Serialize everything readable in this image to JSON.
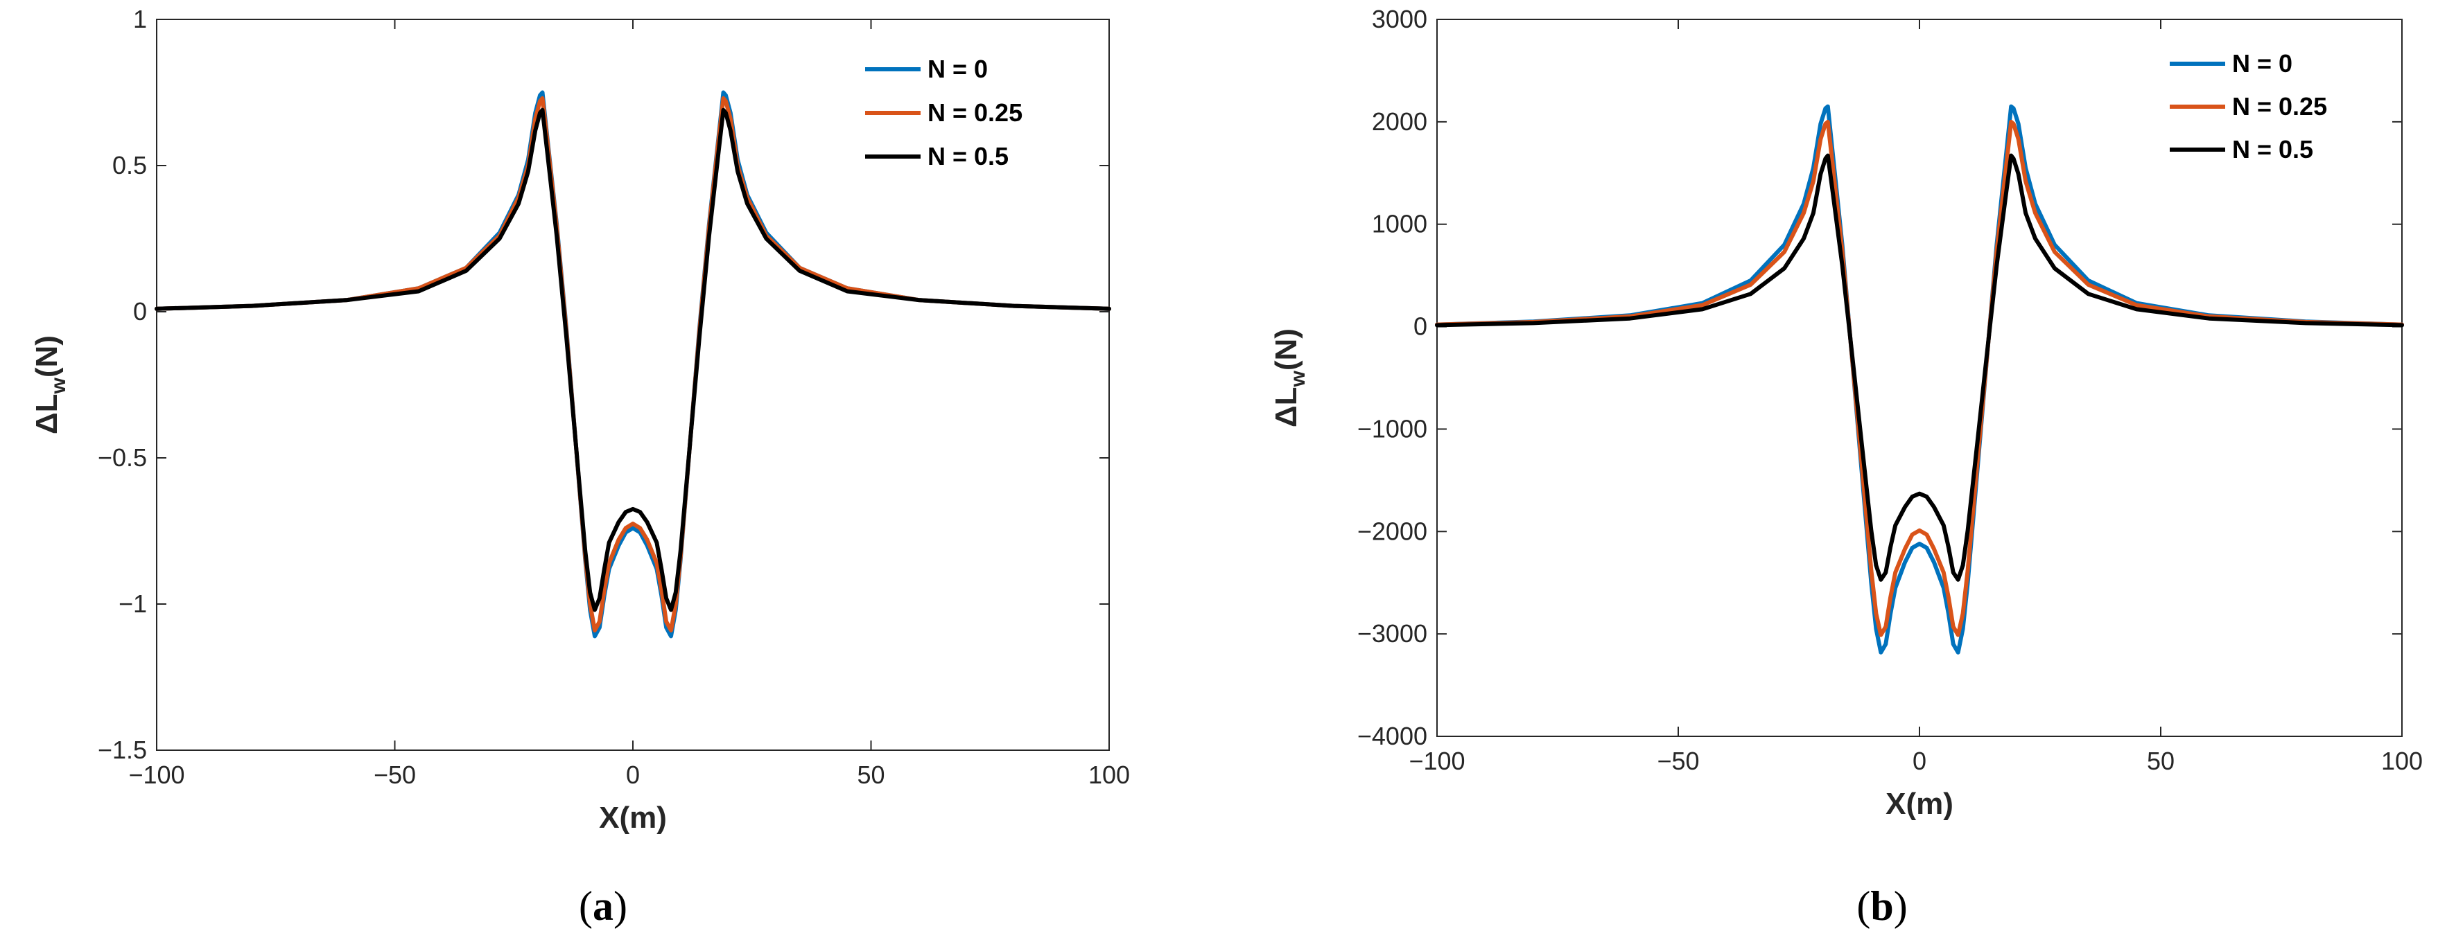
{
  "chart_data": [
    {
      "type": "line",
      "panel": "a",
      "caption_letter": "a",
      "xlabel": "X(m)",
      "ylabel_main": "ΔL",
      "ylabel_sub": "w",
      "ylabel_tail": "(N)",
      "xlim": [
        -100,
        100
      ],
      "ylim": [
        -1.5,
        1
      ],
      "xticks": [
        -100,
        -50,
        0,
        50,
        100
      ],
      "xtick_labels": [
        "−100",
        "−50",
        "0",
        "50",
        "100"
      ],
      "yticks": [
        -1.5,
        -1,
        -0.5,
        0,
        0.5,
        1
      ],
      "ytick_labels": [
        "−1.5",
        "−1",
        "−0.5",
        "0",
        "0.5",
        "1"
      ],
      "legend_position": "top-right",
      "x": [
        -100,
        -80,
        -60,
        -45,
        -35,
        -28,
        -24,
        -22,
        -20.5,
        -19.5,
        -19,
        -18,
        -16,
        -14,
        -12,
        -10,
        -9,
        -8,
        -7,
        -6,
        -5,
        -3,
        -1.5,
        0,
        1.5,
        3,
        5,
        6,
        7,
        8,
        9,
        10,
        12,
        14,
        16,
        18,
        19,
        19.5,
        20.5,
        22,
        24,
        28,
        35,
        45,
        60,
        80,
        100
      ],
      "series": [
        {
          "name": "N = 0",
          "color": "#0072BD",
          "values": [
            0.01,
            0.02,
            0.04,
            0.08,
            0.15,
            0.27,
            0.4,
            0.52,
            0.68,
            0.74,
            0.75,
            0.6,
            0.3,
            -0.05,
            -0.45,
            -0.85,
            -1.02,
            -1.11,
            -1.08,
            -0.97,
            -0.88,
            -0.8,
            -0.755,
            -0.74,
            -0.755,
            -0.8,
            -0.88,
            -0.97,
            -1.08,
            -1.11,
            -1.02,
            -0.85,
            -0.45,
            -0.05,
            0.3,
            0.6,
            0.75,
            0.74,
            0.68,
            0.52,
            0.4,
            0.27,
            0.15,
            0.08,
            0.04,
            0.02,
            0.01
          ]
        },
        {
          "name": "N = 0.25",
          "color": "#D95319",
          "values": [
            0.01,
            0.02,
            0.04,
            0.08,
            0.15,
            0.26,
            0.39,
            0.5,
            0.66,
            0.72,
            0.73,
            0.59,
            0.29,
            -0.06,
            -0.45,
            -0.84,
            -1.0,
            -1.09,
            -1.06,
            -0.95,
            -0.86,
            -0.78,
            -0.74,
            -0.725,
            -0.74,
            -0.78,
            -0.86,
            -0.95,
            -1.06,
            -1.09,
            -1.0,
            -0.84,
            -0.45,
            -0.06,
            0.29,
            0.59,
            0.73,
            0.72,
            0.66,
            0.5,
            0.39,
            0.26,
            0.15,
            0.08,
            0.04,
            0.02,
            0.01
          ]
        },
        {
          "name": "N = 0.5",
          "color": "#000000",
          "values": [
            0.01,
            0.02,
            0.04,
            0.07,
            0.14,
            0.25,
            0.37,
            0.48,
            0.62,
            0.68,
            0.69,
            0.55,
            0.26,
            -0.08,
            -0.45,
            -0.82,
            -0.96,
            -1.02,
            -0.98,
            -0.88,
            -0.79,
            -0.72,
            -0.685,
            -0.675,
            -0.685,
            -0.72,
            -0.79,
            -0.88,
            -0.98,
            -1.02,
            -0.96,
            -0.82,
            -0.45,
            -0.08,
            0.26,
            0.55,
            0.69,
            0.68,
            0.62,
            0.48,
            0.37,
            0.25,
            0.14,
            0.07,
            0.04,
            0.02,
            0.01
          ]
        }
      ]
    },
    {
      "type": "line",
      "panel": "b",
      "caption_letter": "b",
      "xlabel": "X(m)",
      "ylabel_main": "ΔL",
      "ylabel_sub": "w",
      "ylabel_tail": "(N)",
      "xlim": [
        -100,
        100
      ],
      "ylim": [
        -4000,
        3000
      ],
      "xticks": [
        -100,
        -50,
        0,
        50,
        100
      ],
      "xtick_labels": [
        "−100",
        "−50",
        "0",
        "50",
        "100"
      ],
      "yticks": [
        -4000,
        -3000,
        -2000,
        -1000,
        0,
        1000,
        2000,
        3000
      ],
      "ytick_labels": [
        "−4000",
        "−3000",
        "−2000",
        "−1000",
        "0",
        "1000",
        "2000",
        "3000"
      ],
      "legend_position": "top-right",
      "x": [
        -100,
        -80,
        -60,
        -45,
        -35,
        -28,
        -24,
        -22,
        -20.5,
        -19.5,
        -19,
        -18,
        -16,
        -14,
        -12,
        -10,
        -9,
        -8,
        -7,
        -6,
        -5,
        -3,
        -1.5,
        0,
        1.5,
        3,
        5,
        6,
        7,
        8,
        9,
        10,
        12,
        14,
        16,
        18,
        19,
        19.5,
        20.5,
        22,
        24,
        28,
        35,
        45,
        60,
        80,
        100
      ],
      "series": [
        {
          "name": "N = 0",
          "color": "#0072BD",
          "values": [
            20,
            50,
            110,
            230,
            450,
            800,
            1200,
            1550,
            1980,
            2130,
            2150,
            1700,
            800,
            -300,
            -1400,
            -2500,
            -2950,
            -3180,
            -3100,
            -2800,
            -2550,
            -2300,
            -2160,
            -2120,
            -2160,
            -2300,
            -2550,
            -2800,
            -3100,
            -3180,
            -2950,
            -2500,
            -1400,
            -300,
            800,
            1700,
            2150,
            2130,
            1980,
            1550,
            1200,
            800,
            450,
            230,
            110,
            50,
            20
          ]
        },
        {
          "name": "N = 0.25",
          "color": "#D95319",
          "values": [
            20,
            45,
            100,
            210,
            410,
            730,
            1110,
            1420,
            1830,
            1980,
            2000,
            1580,
            740,
            -290,
            -1330,
            -2380,
            -2800,
            -3010,
            -2930,
            -2640,
            -2400,
            -2170,
            -2030,
            -1990,
            -2030,
            -2170,
            -2400,
            -2640,
            -2930,
            -3010,
            -2800,
            -2380,
            -1330,
            -290,
            740,
            1580,
            2000,
            1980,
            1830,
            1420,
            1110,
            730,
            410,
            210,
            100,
            45,
            20
          ]
        },
        {
          "name": "N = 0.5",
          "color": "#000000",
          "values": [
            15,
            35,
            80,
            170,
            320,
            570,
            860,
            1110,
            1490,
            1640,
            1670,
            1320,
            600,
            -260,
            -1130,
            -1990,
            -2330,
            -2470,
            -2400,
            -2150,
            -1940,
            -1760,
            -1660,
            -1630,
            -1660,
            -1760,
            -1940,
            -2150,
            -2400,
            -2470,
            -2330,
            -1990,
            -1130,
            -260,
            600,
            1320,
            1670,
            1640,
            1490,
            1110,
            860,
            570,
            320,
            170,
            80,
            35,
            15
          ]
        }
      ]
    }
  ]
}
